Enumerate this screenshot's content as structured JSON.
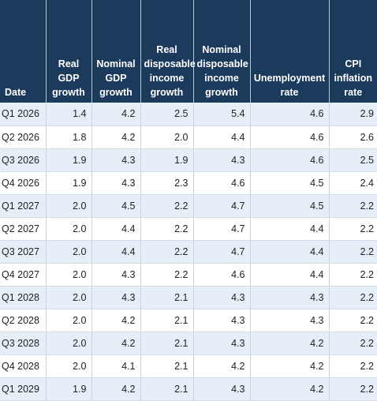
{
  "table": {
    "headers": [
      [
        "Date"
      ],
      [
        "Real",
        "GDP",
        "growth"
      ],
      [
        "Nominal",
        "GDP",
        "growth"
      ],
      [
        "Real",
        "disposable",
        "income",
        "growth"
      ],
      [
        "Nominal",
        "disposable",
        "income",
        "growth"
      ],
      [
        "Unemployment",
        "rate"
      ],
      [
        "CPI",
        "inflation",
        "rate"
      ]
    ],
    "rows": [
      [
        "Q1 2026",
        "1.4",
        "4.2",
        "2.5",
        "5.4",
        "4.6",
        "2.9"
      ],
      [
        "Q2 2026",
        "1.8",
        "4.2",
        "2.0",
        "4.4",
        "4.6",
        "2.6"
      ],
      [
        "Q3 2026",
        "1.9",
        "4.3",
        "1.9",
        "4.3",
        "4.6",
        "2.5"
      ],
      [
        "Q4 2026",
        "1.9",
        "4.3",
        "2.3",
        "4.6",
        "4.5",
        "2.4"
      ],
      [
        "Q1 2027",
        "2.0",
        "4.5",
        "2.2",
        "4.7",
        "4.5",
        "2.2"
      ],
      [
        "Q2 2027",
        "2.0",
        "4.4",
        "2.2",
        "4.7",
        "4.4",
        "2.2"
      ],
      [
        "Q3 2027",
        "2.0",
        "4.4",
        "2.2",
        "4.7",
        "4.4",
        "2.2"
      ],
      [
        "Q4 2027",
        "2.0",
        "4.3",
        "2.2",
        "4.6",
        "4.4",
        "2.2"
      ],
      [
        "Q1 2028",
        "2.0",
        "4.3",
        "2.1",
        "4.3",
        "4.3",
        "2.2"
      ],
      [
        "Q2 2028",
        "2.0",
        "4.2",
        "2.1",
        "4.3",
        "4.3",
        "2.2"
      ],
      [
        "Q3 2028",
        "2.0",
        "4.2",
        "2.1",
        "4.3",
        "4.2",
        "2.2"
      ],
      [
        "Q4 2028",
        "2.0",
        "4.1",
        "2.1",
        "4.2",
        "4.2",
        "2.2"
      ],
      [
        "Q1 2029",
        "1.9",
        "4.2",
        "2.1",
        "4.3",
        "4.2",
        "2.2"
      ]
    ]
  }
}
